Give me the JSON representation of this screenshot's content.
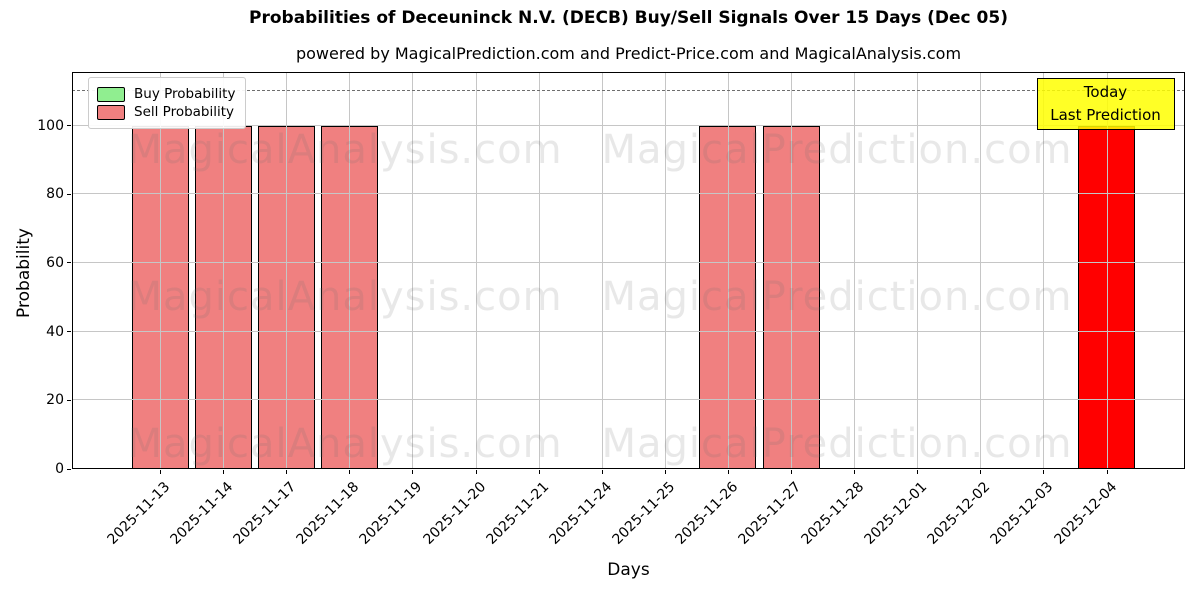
{
  "chart_data": {
    "type": "bar",
    "title": "Probabilities of Deceuninck N.V. (DECB) Buy/Sell Signals Over 15 Days (Dec 05)",
    "subtitle": "powered by MagicalPrediction.com and Predict-Price.com and MagicalAnalysis.com",
    "xlabel": "Days",
    "ylabel": "Probability",
    "ylim": [
      0,
      115.6
    ],
    "yticks": [
      0,
      20,
      40,
      60,
      80,
      100
    ],
    "grid": true,
    "dashed_line_y": 110,
    "legend_position": "upper-left",
    "categories": [
      "2025-11-13",
      "2025-11-14",
      "2025-11-17",
      "2025-11-18",
      "2025-11-19",
      "2025-11-20",
      "2025-11-21",
      "2025-11-24",
      "2025-11-25",
      "2025-11-26",
      "2025-11-27",
      "2025-11-28",
      "2025-12-01",
      "2025-12-02",
      "2025-12-03",
      "2025-12-04"
    ],
    "series": [
      {
        "name": "Buy Probability",
        "color": "#90ee90",
        "values": [
          0,
          0,
          0,
          0,
          0,
          0,
          0,
          0,
          0,
          0,
          0,
          0,
          0,
          0,
          0,
          0
        ]
      },
      {
        "name": "Sell Probability",
        "color": "#f08080",
        "values": [
          100,
          100,
          100,
          100,
          0,
          0,
          0,
          0,
          0,
          100,
          100,
          0,
          0,
          0,
          0,
          100
        ]
      }
    ],
    "highlight": {
      "category": "2025-12-04",
      "bar_color": "#ff0000",
      "label_line1": "Today",
      "label_line2": "Last Prediction",
      "label_bg": "#ffff00"
    }
  },
  "legend": {
    "items": [
      {
        "label": "Buy Probability",
        "color": "#90ee90"
      },
      {
        "label": "Sell Probability",
        "color": "#f08080"
      }
    ]
  },
  "watermarks": {
    "left_text": "MagicalAnalysis.com",
    "right_text": "MagicalPrediction.com"
  }
}
